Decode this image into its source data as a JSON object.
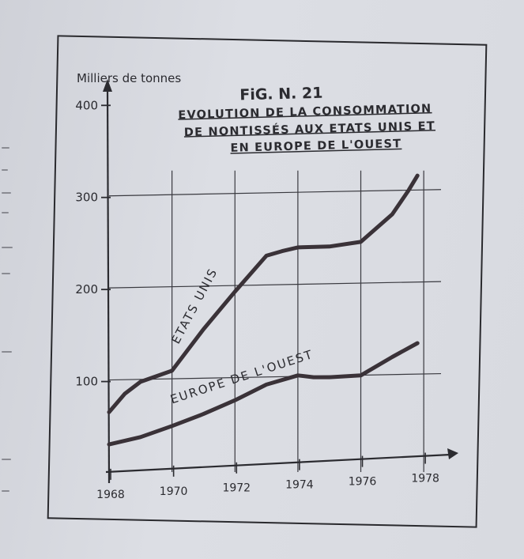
{
  "chart_data": {
    "type": "line",
    "figure_label": "FiG. N. 21",
    "title_lines": [
      "EVOLUTION DE LA CONSOMMATION",
      "DE NONTISSÉS AUX ETATS UNIS ET",
      "EN EUROPE DE L'OUEST"
    ],
    "ylabel": "Milliers de tonnes",
    "xlabel": "",
    "xlim": [
      1968,
      1978.8
    ],
    "ylim": [
      0,
      420
    ],
    "y_ticks": [
      100,
      200,
      300,
      400
    ],
    "x_tick_labels": [
      1968,
      1970,
      1972,
      1974,
      1976,
      1978
    ],
    "grid_x": [
      1970,
      1972,
      1974,
      1976,
      1978
    ],
    "grid_y": [
      100,
      200,
      300
    ],
    "series": [
      {
        "name": "ETATS UNIS",
        "x": [
          1968,
          1968.5,
          1969,
          1970,
          1971,
          1972,
          1973,
          1973.5,
          1974,
          1975,
          1976,
          1977,
          1977.5,
          1977.8
        ],
        "y": [
          65,
          85,
          98,
          110,
          155,
          196,
          235,
          240,
          244,
          245,
          250,
          280,
          305,
          322
        ]
      },
      {
        "name": "EUROPE DE L'OUEST",
        "x": [
          1968,
          1969,
          1970,
          1971,
          1972,
          1973,
          1974,
          1974.5,
          1975,
          1976,
          1977,
          1977.8
        ],
        "y": [
          30,
          38,
          50,
          63,
          78,
          95,
          105,
          103,
          103,
          105,
          125,
          140
        ]
      }
    ]
  }
}
